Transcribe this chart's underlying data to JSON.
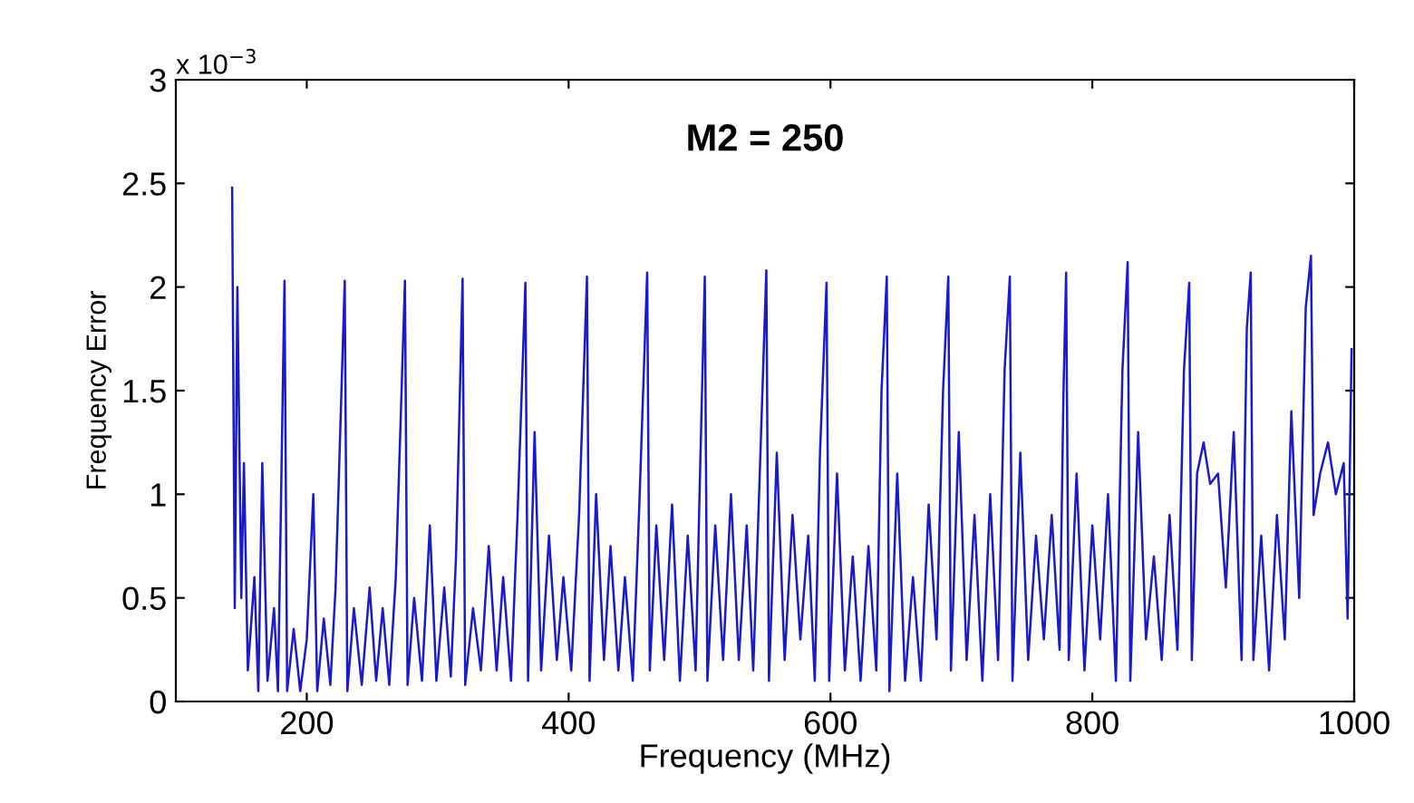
{
  "chart_data": {
    "type": "line",
    "xlabel": "Frequency (MHz)",
    "ylabel": "Frequency Error",
    "annotations": [
      "M2 = 250",
      "x 10$^{−3}$"
    ],
    "xlim": [
      100,
      1000
    ],
    "xticks": [
      200,
      400,
      600,
      800,
      1000
    ],
    "ylim": [
      0,
      3
    ],
    "yticks": [
      0,
      0.5,
      1,
      1.5,
      2,
      2.5,
      3
    ],
    "grid": false,
    "legend": false,
    "marker": "none",
    "line_style": "solid",
    "series": [
      {
        "color": "#1a1ac8",
        "x": [
          143,
          145,
          147,
          150,
          152,
          155,
          160,
          163,
          166,
          170,
          175,
          178,
          183,
          185,
          190,
          195,
          200,
          205,
          208,
          213,
          218,
          222,
          229,
          231,
          236,
          242,
          248,
          253,
          258,
          263,
          268,
          275,
          277,
          282,
          288,
          294,
          299,
          305,
          310,
          314,
          319,
          321,
          327,
          333,
          339,
          345,
          350,
          356,
          361,
          367,
          369,
          374,
          379,
          385,
          391,
          396,
          402,
          408,
          414,
          416,
          421,
          427,
          432,
          438,
          443,
          449,
          454,
          460,
          462,
          467,
          473,
          479,
          485,
          491,
          497,
          500,
          504,
          506,
          512,
          518,
          524,
          530,
          536,
          541,
          546,
          551,
          553,
          559,
          565,
          571,
          577,
          583,
          588,
          592,
          597,
          599,
          605,
          611,
          617,
          623,
          629,
          635,
          639,
          643,
          645,
          651,
          657,
          663,
          669,
          675,
          681,
          686,
          690,
          692,
          698,
          704,
          710,
          716,
          722,
          728,
          733,
          737,
          739,
          745,
          751,
          757,
          763,
          769,
          775,
          778,
          780,
          782,
          788,
          794,
          800,
          806,
          812,
          818,
          823,
          827,
          829,
          835,
          841,
          847,
          853,
          859,
          865,
          870,
          874,
          876,
          880,
          885,
          890,
          896,
          902,
          908,
          914,
          918,
          921,
          923,
          929,
          935,
          941,
          947,
          952,
          958,
          963,
          967,
          969,
          974,
          980,
          986,
          992,
          995,
          998
        ],
        "values": [
          2.48,
          0.45,
          2.0,
          0.5,
          1.15,
          0.15,
          0.6,
          0.05,
          1.15,
          0.1,
          0.45,
          0.05,
          2.03,
          0.05,
          0.35,
          0.05,
          0.3,
          1.0,
          0.05,
          0.4,
          0.08,
          0.55,
          2.03,
          0.05,
          0.45,
          0.08,
          0.55,
          0.1,
          0.45,
          0.08,
          0.6,
          2.03,
          0.08,
          0.5,
          0.1,
          0.85,
          0.1,
          0.55,
          0.12,
          0.7,
          2.04,
          0.08,
          0.45,
          0.15,
          0.75,
          0.15,
          0.6,
          0.1,
          0.9,
          2.02,
          0.1,
          1.3,
          0.15,
          0.8,
          0.2,
          0.6,
          0.15,
          0.9,
          2.05,
          0.1,
          1.0,
          0.2,
          0.75,
          0.15,
          0.6,
          0.1,
          0.95,
          2.07,
          0.15,
          0.85,
          0.2,
          0.95,
          0.1,
          0.8,
          0.15,
          1.0,
          2.05,
          0.1,
          0.85,
          0.2,
          1.0,
          0.2,
          0.85,
          0.15,
          1.1,
          2.08,
          0.1,
          1.2,
          0.2,
          0.9,
          0.3,
          0.8,
          0.1,
          1.2,
          2.02,
          0.1,
          1.1,
          0.15,
          0.7,
          0.1,
          0.75,
          0.15,
          1.5,
          2.05,
          0.05,
          1.1,
          0.1,
          0.6,
          0.1,
          0.95,
          0.3,
          1.5,
          2.05,
          0.15,
          1.3,
          0.2,
          0.9,
          0.1,
          1.0,
          0.2,
          1.6,
          2.05,
          0.1,
          1.2,
          0.2,
          0.8,
          0.3,
          0.9,
          0.25,
          1.5,
          2.07,
          0.2,
          1.1,
          0.15,
          0.85,
          0.3,
          1.0,
          0.1,
          1.6,
          2.12,
          0.1,
          1.3,
          0.3,
          0.7,
          0.2,
          0.9,
          0.25,
          1.6,
          2.02,
          0.2,
          1.1,
          1.25,
          1.05,
          1.1,
          0.55,
          1.3,
          0.2,
          1.8,
          2.07,
          0.2,
          0.8,
          0.15,
          0.9,
          0.3,
          1.4,
          0.5,
          1.9,
          2.15,
          0.9,
          1.1,
          1.25,
          1.0,
          1.15,
          0.4,
          1.7
        ]
      }
    ]
  }
}
